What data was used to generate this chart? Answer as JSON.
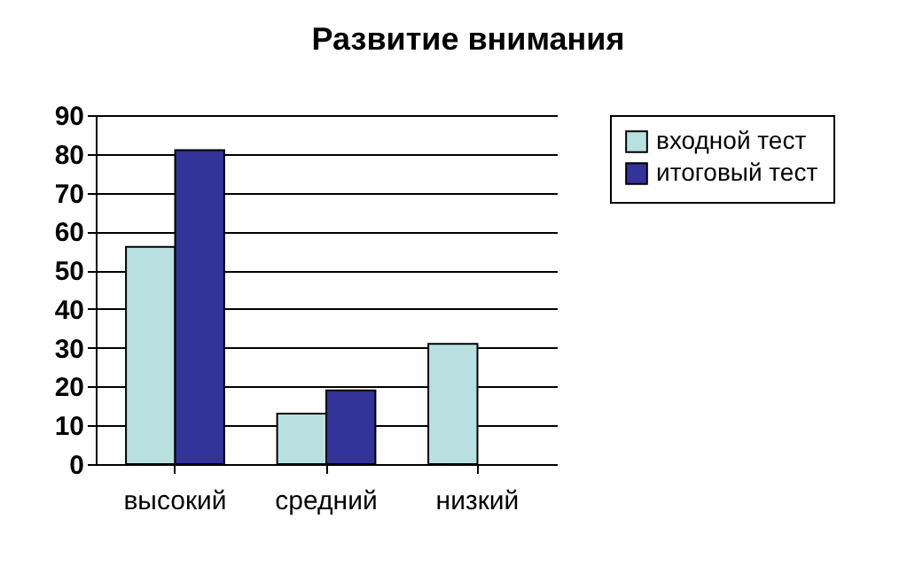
{
  "chart_data": {
    "type": "bar",
    "title": "Развитие внимания",
    "categories": [
      "высокий",
      "средний",
      "низкий"
    ],
    "series": [
      {
        "name": "входной тест",
        "color": "#b8e0e0",
        "values": [
          56,
          13,
          31
        ]
      },
      {
        "name": "итоговый тест",
        "color": "#333399",
        "values": [
          81,
          19,
          null
        ]
      }
    ],
    "ylim": [
      0,
      90
    ],
    "yticks": [
      0,
      10,
      20,
      30,
      40,
      50,
      60,
      70,
      80,
      90
    ],
    "grid": "y",
    "legend": "right"
  }
}
